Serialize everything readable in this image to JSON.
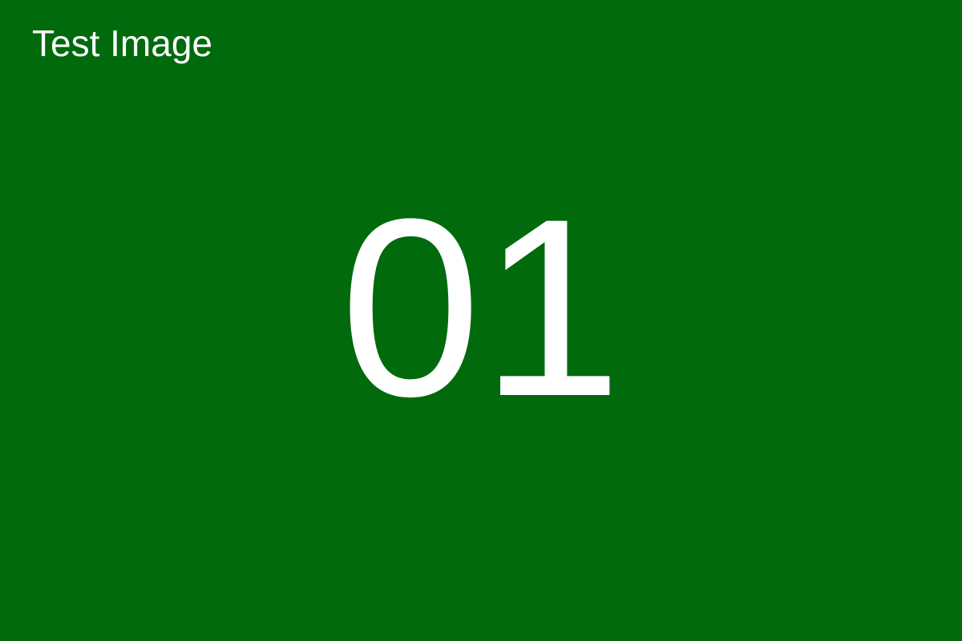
{
  "title": "Test Image",
  "number": "01",
  "colors": {
    "background": "#006a0d",
    "text": "#ffffff"
  }
}
